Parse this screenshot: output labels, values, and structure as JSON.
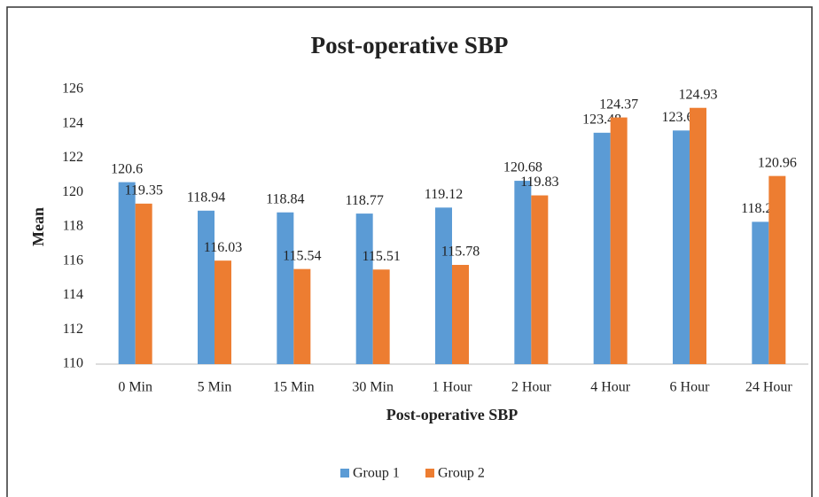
{
  "chart_data": {
    "type": "bar",
    "title": "Post-operative SBP",
    "x_label": "Post-operative SBP",
    "y_label": "Mean",
    "categories": [
      "0 Min",
      "5 Min",
      "15 Min",
      "30 Min",
      "1 Hour",
      "2 Hour",
      "4 Hour",
      "6 Hour",
      "24 Hour"
    ],
    "series": [
      {
        "name": "Group 1",
        "color": "#5b9bd5",
        "values": [
          120.6,
          118.94,
          118.84,
          118.77,
          119.12,
          120.68,
          123.48,
          123.61,
          118.29
        ]
      },
      {
        "name": "Group 2",
        "color": "#ed7d31",
        "values": [
          119.35,
          116.03,
          115.54,
          115.51,
          115.78,
          119.83,
          124.37,
          124.93,
          120.96
        ]
      }
    ],
    "ylim": [
      110,
      126
    ],
    "yticks": [
      110,
      112,
      114,
      116,
      118,
      120,
      122,
      124,
      126
    ],
    "grid": false,
    "legend": "bottom"
  }
}
